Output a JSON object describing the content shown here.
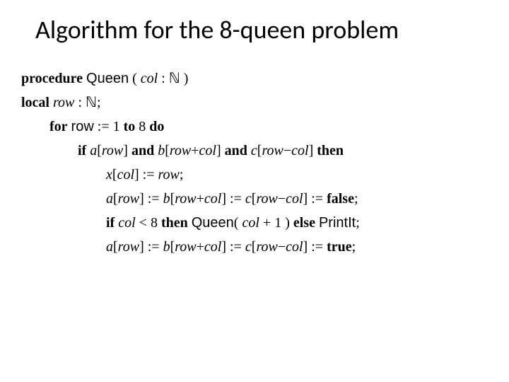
{
  "title": "Algorithm for the 8-queen problem",
  "kw_procedure": "procedure",
  "proc_name": "Queen",
  "lparen": " ( ",
  "col_var": "col",
  "colon1": " : ",
  "nat1": "ℕ",
  "rparen": " )",
  "kw_local": "local",
  "sp1": " ",
  "row_var": "row",
  "colon2": " : ",
  "nat2": "ℕ",
  "semi1": ";",
  "kw_for": "for",
  "sp2": " ",
  "row_sf": "row",
  "assign1": " := ",
  "one": "1",
  "sp3": "  ",
  "kw_to": "to",
  "sp4": " ",
  "eight": "8",
  "sp5": "  ",
  "kw_do": "do",
  "kw_if1": "if",
  "sp6": " ",
  "a1": "a",
  "lb1": "[",
  "row_it1": "row",
  "rb1": "]",
  "sp7": "  ",
  "kw_and1": "and",
  "sp8": " ",
  "b1": "b",
  "lb2": "[",
  "row_it2": "row",
  "plus1": "+",
  "col_it1": "col",
  "rb2": "]",
  "sp9": "  ",
  "kw_and2": "and",
  "sp10": " ",
  "c1": "c",
  "lb3": "[",
  "row_it3": "row",
  "minus1": "−",
  "col_it2": "col",
  "rb3": "]",
  "sp11": " ",
  "kw_then1": "then",
  "x1": "x",
  "lb4": "[",
  "col_it3": "col",
  "rb4": "]",
  "assign2": " := ",
  "row_it4": "row",
  "semi2": ";",
  "a2": "a",
  "lb5": "[",
  "row_it5": "row",
  "rb5": "]",
  "assign3": " := ",
  "b2": "b",
  "lb6": "[",
  "row_it6": "row",
  "plus2": "+",
  "col_it4": "col",
  "rb6": "]",
  "assign4": " := ",
  "c2": "c",
  "lb7": "[",
  "row_it7": "row",
  "minus2": "−",
  "col_it5": "col",
  "rb7": "]",
  "assign5": " := ",
  "sp12": " ",
  "kw_false": "false",
  "semi3": ";",
  "kw_if2": "if",
  "sp13": " ",
  "col_it6": "col",
  "lt": " < ",
  "eight2": "8",
  "sp14": " ",
  "kw_then2": "then",
  "sp15": " ",
  "queen2": "Queen",
  "lparen2": "( ",
  "col_it7": "col",
  "plus3": " + ",
  "one2": "1",
  "rparen2": " )",
  "sp16": " ",
  "kw_else": "else",
  "sp17": " ",
  "printit": "PrintIt",
  "semi4": ";",
  "a3": "a",
  "lb8": "[",
  "row_it8": "row",
  "rb8": "]",
  "assign6": " := ",
  "b3": "b",
  "lb9": "[",
  "row_it9": "row",
  "plus4": "+",
  "col_it8": "col",
  "rb9": "]",
  "assign7": " := ",
  "c3": "c",
  "lb10": "[",
  "row_it10": "row",
  "minus3": "−",
  "col_it9": "col",
  "rb10": "]",
  "assign8": " := ",
  "sp18": " ",
  "kw_true": "true",
  "semi5": ";"
}
